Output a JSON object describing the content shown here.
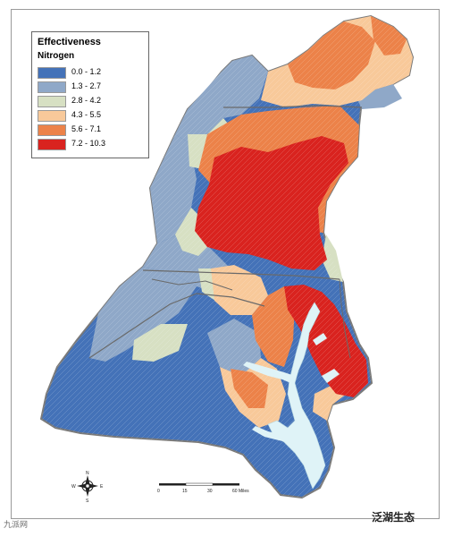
{
  "legend": {
    "title": "Effectiveness",
    "subtitle": "Nitrogen",
    "items": [
      {
        "label": "0.0 - 1.2",
        "color": "#4472b8"
      },
      {
        "label": "1.3 - 2.7",
        "color": "#8fa8c8"
      },
      {
        "label": "2.8 - 4.2",
        "color": "#d7e0c3"
      },
      {
        "label": "4.3 - 5.5",
        "color": "#f8c99a"
      },
      {
        "label": "5.6 - 7.1",
        "color": "#ec8249"
      },
      {
        "label": "7.2 - 10.3",
        "color": "#d9231f"
      }
    ]
  },
  "water_color": "#dff3f7",
  "scale_bar": {
    "ticks": [
      "0",
      "15",
      "30",
      "60 Miles"
    ]
  },
  "north_arrow": {
    "n": "N",
    "s": "S",
    "e": "E",
    "w": "W"
  },
  "watermark_left": "九派网",
  "watermark_right": "泛湖生态"
}
